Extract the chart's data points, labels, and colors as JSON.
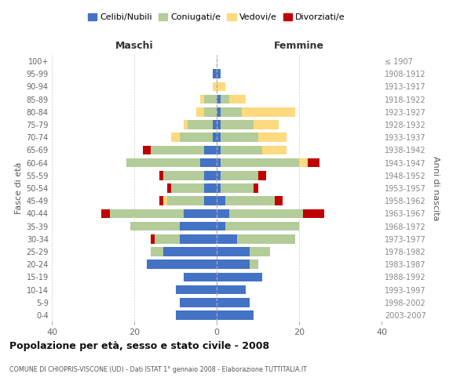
{
  "age_groups": [
    "0-4",
    "5-9",
    "10-14",
    "15-19",
    "20-24",
    "25-29",
    "30-34",
    "35-39",
    "40-44",
    "45-49",
    "50-54",
    "55-59",
    "60-64",
    "65-69",
    "70-74",
    "75-79",
    "80-84",
    "85-89",
    "90-94",
    "95-99",
    "100+"
  ],
  "birth_years": [
    "2003-2007",
    "1998-2002",
    "1993-1997",
    "1988-1992",
    "1983-1987",
    "1978-1982",
    "1973-1977",
    "1968-1972",
    "1963-1967",
    "1958-1962",
    "1953-1957",
    "1948-1952",
    "1943-1947",
    "1938-1942",
    "1933-1937",
    "1928-1932",
    "1923-1927",
    "1918-1922",
    "1913-1917",
    "1908-1912",
    "≤ 1907"
  ],
  "colors": {
    "celibe": "#4472C4",
    "coniugato": "#B3CC99",
    "vedovo": "#FFD97D",
    "divorziato": "#C00000"
  },
  "maschi": {
    "celibe": [
      10,
      9,
      10,
      8,
      17,
      13,
      9,
      9,
      8,
      3,
      3,
      3,
      4,
      3,
      1,
      1,
      0,
      0,
      0,
      1,
      0
    ],
    "coniugato": [
      0,
      0,
      0,
      0,
      0,
      3,
      6,
      12,
      18,
      9,
      8,
      10,
      18,
      13,
      8,
      6,
      3,
      3,
      0,
      0,
      0
    ],
    "vedovo": [
      0,
      0,
      0,
      0,
      0,
      0,
      0,
      0,
      0,
      1,
      0,
      0,
      0,
      0,
      2,
      1,
      2,
      1,
      1,
      0,
      0
    ],
    "divorziato": [
      0,
      0,
      0,
      0,
      0,
      0,
      1,
      0,
      2,
      1,
      1,
      1,
      0,
      2,
      0,
      0,
      0,
      0,
      0,
      0,
      0
    ]
  },
  "femmine": {
    "nubile": [
      9,
      8,
      7,
      11,
      8,
      8,
      5,
      2,
      3,
      2,
      1,
      1,
      1,
      1,
      1,
      1,
      1,
      1,
      0,
      1,
      0
    ],
    "coniugata": [
      0,
      0,
      0,
      0,
      2,
      5,
      14,
      18,
      18,
      12,
      8,
      9,
      19,
      10,
      9,
      8,
      5,
      2,
      0,
      0,
      0
    ],
    "vedova": [
      0,
      0,
      0,
      0,
      0,
      0,
      0,
      0,
      0,
      0,
      0,
      0,
      2,
      6,
      7,
      6,
      13,
      4,
      2,
      0,
      0
    ],
    "divorziata": [
      0,
      0,
      0,
      0,
      0,
      0,
      0,
      0,
      5,
      2,
      1,
      2,
      3,
      0,
      0,
      0,
      0,
      0,
      0,
      0,
      0
    ]
  },
  "xlim": 40,
  "title": "Popolazione per età, sesso e stato civile - 2008",
  "subtitle": "COMUNE DI CHIOPRIS-VISCONE (UD) - Dati ISTAT 1° gennaio 2008 - Elaborazione TUTTITALIA.IT",
  "ylabel_left": "Fasce di età",
  "ylabel_right": "Anni di nascita",
  "label_maschi": "Maschi",
  "label_femmine": "Femmine",
  "legend_labels": [
    "Celibi/Nubili",
    "Coniugati/e",
    "Vedovi/e",
    "Divorziati/e"
  ],
  "background_color": "#ffffff",
  "grid_color": "#cccccc"
}
